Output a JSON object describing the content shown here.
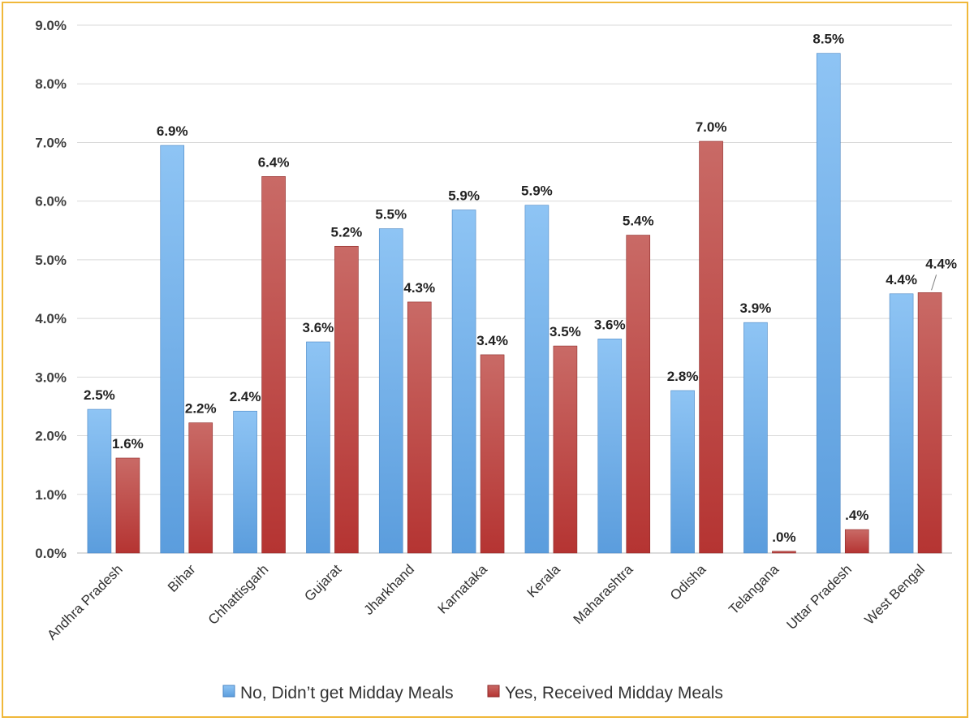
{
  "chart_data": {
    "type": "bar",
    "categories": [
      "Andhra Pradesh",
      "Bihar",
      "Chhattisgarh",
      "Gujarat",
      "Jharkhand",
      "Karnataka",
      "Kerala",
      "Maharashtra",
      "Odisha",
      "Telangana",
      "Uttar Pradesh",
      "West Bengal"
    ],
    "series": [
      {
        "name": "No, Didn’t get Midday Meals",
        "color": "#6aaee8",
        "values": [
          2.45,
          6.95,
          2.42,
          3.6,
          5.53,
          5.85,
          5.93,
          3.65,
          2.77,
          3.93,
          8.52,
          4.42
        ],
        "labels": [
          "2.5%",
          "6.9%",
          "2.4%",
          "3.6%",
          "5.5%",
          "5.9%",
          "5.9%",
          "3.6%",
          "2.8%",
          "3.9%",
          "8.5%",
          "4.4%"
        ]
      },
      {
        "name": "Yes, Received Midday Meals",
        "color": "#c0403e",
        "values": [
          1.62,
          2.22,
          6.42,
          5.23,
          4.28,
          3.38,
          3.53,
          5.42,
          7.02,
          0.03,
          0.4,
          4.44
        ],
        "labels": [
          "1.6%",
          "2.2%",
          "6.4%",
          "5.2%",
          "4.3%",
          "3.4%",
          "3.5%",
          "5.4%",
          "7.0%",
          ".0%",
          ".4%",
          "4.4%"
        ]
      }
    ],
    "ylim": [
      0,
      9
    ],
    "yticks": [
      "0.0%",
      "1.0%",
      "2.0%",
      "3.0%",
      "4.0%",
      "5.0%",
      "6.0%",
      "7.0%",
      "8.0%",
      "9.0%"
    ],
    "grid": true,
    "legend_position": "bottom"
  }
}
